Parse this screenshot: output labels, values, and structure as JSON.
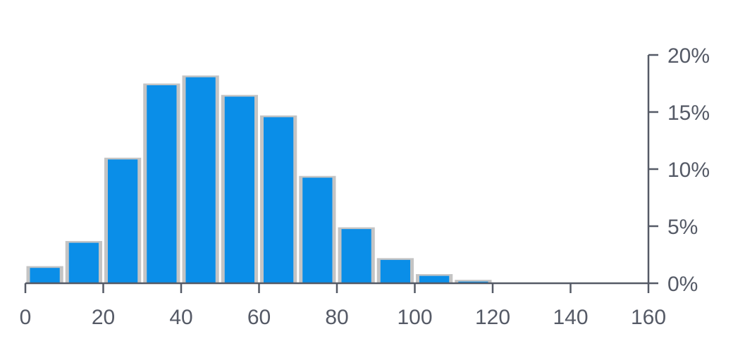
{
  "chart_data": {
    "type": "bar",
    "title": "",
    "xlabel": "",
    "ylabel": "",
    "x_axis": {
      "min": 0,
      "max": 160,
      "ticks": [
        0,
        20,
        40,
        60,
        80,
        100,
        120,
        140,
        160
      ],
      "tick_labels": [
        "0",
        "20",
        "40",
        "60",
        "80",
        "100",
        "120",
        "140",
        "160"
      ]
    },
    "y_axis": {
      "min": 0,
      "max": 20,
      "position": "right",
      "ticks": [
        0,
        5,
        10,
        15,
        20
      ],
      "tick_labels": [
        "0%",
        "5%",
        "10%",
        "15%",
        "20%"
      ],
      "unit": "%"
    },
    "grid": false,
    "legend": "none",
    "bins": [
      {
        "x0": 0,
        "x1": 10,
        "value": 1.5
      },
      {
        "x0": 10,
        "x1": 20,
        "value": 3.7
      },
      {
        "x0": 20,
        "x1": 30,
        "value": 11.0
      },
      {
        "x0": 30,
        "x1": 40,
        "value": 17.5
      },
      {
        "x0": 40,
        "x1": 50,
        "value": 18.2
      },
      {
        "x0": 50,
        "x1": 60,
        "value": 16.5
      },
      {
        "x0": 60,
        "x1": 70,
        "value": 14.7
      },
      {
        "x0": 70,
        "x1": 80,
        "value": 9.4
      },
      {
        "x0": 80,
        "x1": 90,
        "value": 4.9
      },
      {
        "x0": 90,
        "x1": 100,
        "value": 2.2
      },
      {
        "x0": 100,
        "x1": 110,
        "value": 0.8
      },
      {
        "x0": 110,
        "x1": 120,
        "value": 0.3
      }
    ],
    "colors": {
      "bar": "#0a8ee8",
      "bar_shadow": "#c4c4c4",
      "axis": "#555a66"
    }
  }
}
